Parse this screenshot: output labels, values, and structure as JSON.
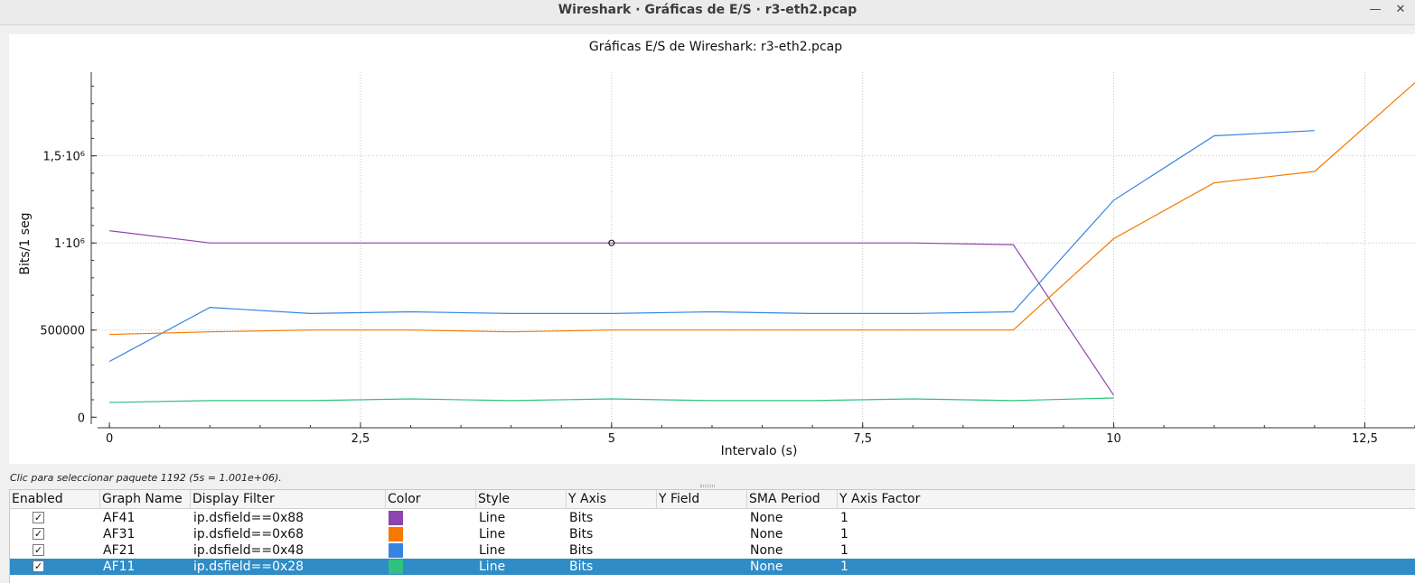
{
  "window": {
    "title": "Wireshark · Gráficas de E/S · r3-eth2.pcap",
    "minimize_glyph": "—",
    "close_glyph": "✕"
  },
  "status_text": "Clic para seleccionar paquete 1192 (5s = 1.001e+06).",
  "colors": {
    "AF41": "#8e44ad",
    "AF31": "#f57900",
    "AF21": "#3584e4",
    "AF11": "#2ec27e",
    "selection": "#308cc6"
  },
  "chart_data": {
    "type": "line",
    "title": "Gráficas E/S de Wireshark: r3-eth2.pcap",
    "xlabel": "Intervalo (s)",
    "ylabel": "Bits/1 seg",
    "xlim": [
      -0.1,
      13
    ],
    "ylim": [
      -40000,
      1980000
    ],
    "x_ticks": [
      0,
      2.5,
      5,
      7.5,
      10,
      12.5
    ],
    "x_tick_labels": [
      "0",
      "2,5",
      "5",
      "7,5",
      "10",
      "12,5"
    ],
    "y_ticks": [
      0,
      500000,
      1000000,
      1500000
    ],
    "y_tick_labels": [
      "0",
      "500000",
      "1·10⁶",
      "1,5·10⁶"
    ],
    "grid": true,
    "series": [
      {
        "name": "AF41",
        "x": [
          0,
          1,
          2,
          3,
          4,
          5,
          6,
          7,
          8,
          9,
          10
        ],
        "values": [
          1070000,
          1000000,
          1000000,
          1000000,
          1000000,
          1000000,
          1000000,
          1000000,
          1000000,
          990000,
          125000
        ]
      },
      {
        "name": "AF31",
        "x": [
          0,
          1,
          2,
          3,
          4,
          5,
          6,
          7,
          8,
          9,
          10,
          11,
          12,
          13
        ],
        "values": [
          475000,
          490000,
          500000,
          500000,
          490000,
          500000,
          500000,
          500000,
          500000,
          500000,
          1025000,
          1345000,
          1410000,
          1920000
        ]
      },
      {
        "name": "AF21",
        "x": [
          0,
          1,
          2,
          3,
          4,
          5,
          6,
          7,
          8,
          9,
          10,
          11,
          12
        ],
        "values": [
          320000,
          630000,
          595000,
          605000,
          595000,
          595000,
          605000,
          595000,
          595000,
          605000,
          1245000,
          1615000,
          1645000
        ]
      },
      {
        "name": "AF11",
        "x": [
          0,
          1,
          2,
          3,
          4,
          5,
          6,
          7,
          8,
          9,
          10
        ],
        "values": [
          85000,
          95000,
          95000,
          105000,
          95000,
          105000,
          95000,
          95000,
          105000,
          95000,
          110000
        ]
      }
    ],
    "marker": {
      "x": 5,
      "y": 1000000
    }
  },
  "table": {
    "headers": [
      "Enabled",
      "Graph Name",
      "Display Filter",
      "Color",
      "Style",
      "Y Axis",
      "Y Field",
      "SMA Period",
      "Y Axis Factor"
    ],
    "rows": [
      {
        "enabled": "✓",
        "name": "AF41",
        "filter": "ip.dsfield==0x88",
        "style": "Line",
        "y_axis": "Bits",
        "y_field": "",
        "sma": "None",
        "factor": "1"
      },
      {
        "enabled": "✓",
        "name": "AF31",
        "filter": "ip.dsfield==0x68",
        "style": "Line",
        "y_axis": "Bits",
        "y_field": "",
        "sma": "None",
        "factor": "1"
      },
      {
        "enabled": "✓",
        "name": "AF21",
        "filter": "ip.dsfield==0x48",
        "style": "Line",
        "y_axis": "Bits",
        "y_field": "",
        "sma": "None",
        "factor": "1"
      },
      {
        "enabled": "✓",
        "name": "AF11",
        "filter": "ip.dsfield==0x28",
        "style": "Line",
        "y_axis": "Bits",
        "y_field": "",
        "sma": "None",
        "factor": "1"
      }
    ],
    "selected_row": 3
  }
}
